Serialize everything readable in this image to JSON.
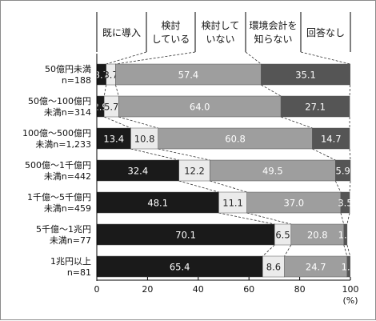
{
  "chart_data": {
    "type": "bar",
    "stacked": true,
    "orientation": "horizontal",
    "categories": [
      [
        "50億円未満",
        "n=188"
      ],
      [
        "50億～100億円",
        "未満n=314"
      ],
      [
        "100億～500億円",
        "未満n=1,233"
      ],
      [
        "500億～1千億円",
        "未満n=442"
      ],
      [
        "1千億～5千億円",
        "未満n=459"
      ],
      [
        "5千億～1兆円",
        "未満n=77"
      ],
      [
        "1兆円以上",
        "n=81"
      ]
    ],
    "series": [
      {
        "name": "既に導入",
        "lines": [
          "既に導入"
        ],
        "color": "#1a1a1a",
        "text_color": "#ffffff",
        "values": [
          3.7,
          2.9,
          13.4,
          32.4,
          48.1,
          70.1,
          65.4
        ]
      },
      {
        "name": "検討している",
        "lines": [
          "検討",
          "している"
        ],
        "color": "#ebebeb",
        "text_color": "#222222",
        "values": [
          3.7,
          5.7,
          10.8,
          12.2,
          11.1,
          6.5,
          8.6
        ]
      },
      {
        "name": "検討していない",
        "lines": [
          "検討して",
          "いない"
        ],
        "color": "#9e9e9e",
        "text_color": "#ffffff",
        "values": [
          57.4,
          64.0,
          60.8,
          49.5,
          37.0,
          20.8,
          24.7
        ]
      },
      {
        "name": "環境会計を知らない",
        "lines": [
          "環境会計を",
          "知らない"
        ],
        "color": "#555555",
        "text_color": "#ffffff",
        "values": [
          35.1,
          27.1,
          14.7,
          5.9,
          3.5,
          1.3,
          1.2
        ]
      },
      {
        "name": "回答なし",
        "lines": [
          "回答なし"
        ],
        "color": "#2e2e2e",
        "text_color": "#ffffff",
        "values": [
          0,
          0,
          0,
          0,
          0,
          0,
          0
        ]
      }
    ],
    "xlim": [
      0,
      100
    ],
    "xticks": [
      "0",
      "20",
      "40",
      "60",
      "80",
      "100"
    ],
    "x_unit": "(%)",
    "grid": false,
    "legend": "top"
  }
}
